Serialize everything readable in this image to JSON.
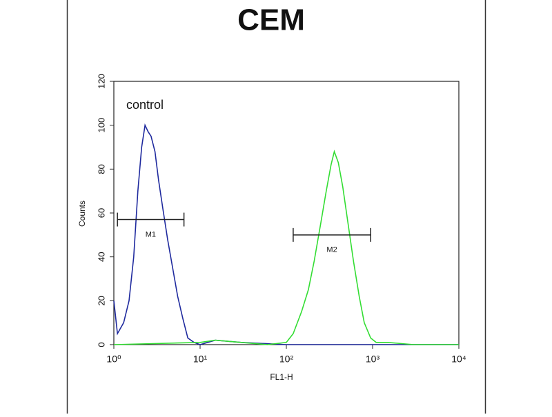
{
  "chart_data": {
    "type": "line",
    "title": "CEM",
    "xlabel": "FL1-H",
    "ylabel": "Counts",
    "xscale": "log",
    "xlim": [
      1,
      10000
    ],
    "xticks": [
      {
        "value": 1,
        "label": "10⁰"
      },
      {
        "value": 10,
        "label": "10¹"
      },
      {
        "value": 100,
        "label": "10²"
      },
      {
        "value": 1000,
        "label": "10³"
      },
      {
        "value": 10000,
        "label": "10⁴"
      }
    ],
    "ylim": [
      0,
      120
    ],
    "yticks": [
      0,
      20,
      40,
      60,
      80,
      100,
      120
    ],
    "series": [
      {
        "name": "control",
        "color": "#1f2a9e",
        "x": [
          1,
          1.1,
          1.3,
          1.5,
          1.7,
          1.9,
          2.1,
          2.3,
          2.5,
          2.7,
          3.0,
          3.3,
          3.7,
          4.2,
          4.8,
          5.5,
          6.3,
          7.2,
          8.5,
          10,
          15,
          30,
          100,
          1000,
          10000
        ],
        "values": [
          20,
          5,
          10,
          20,
          40,
          70,
          90,
          100,
          97,
          95,
          88,
          75,
          62,
          48,
          35,
          22,
          12,
          3,
          1,
          0,
          2,
          1,
          0,
          0,
          0
        ]
      },
      {
        "name": null,
        "color": "#33dd33",
        "x": [
          1,
          10,
          15,
          30,
          60,
          100,
          120,
          150,
          180,
          210,
          250,
          290,
          330,
          360,
          400,
          450,
          520,
          600,
          700,
          800,
          950,
          1100,
          1500,
          3000,
          10000
        ],
        "values": [
          0,
          1,
          2,
          1,
          0,
          1,
          5,
          15,
          25,
          38,
          55,
          70,
          82,
          88,
          83,
          72,
          55,
          38,
          22,
          10,
          3,
          1,
          1,
          0,
          0
        ]
      }
    ],
    "markers": [
      {
        "label": "M1",
        "x": [
          1.1,
          6.5
        ],
        "y": 57
      },
      {
        "label": "M2",
        "x": [
          120,
          950
        ],
        "y": 50
      }
    ]
  }
}
